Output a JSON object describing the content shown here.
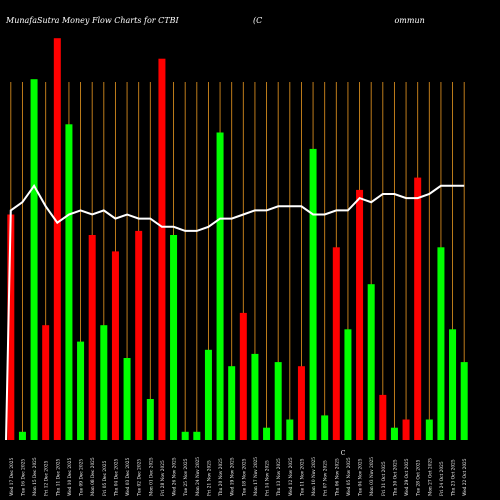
{
  "header": {
    "title": "MunafaSutra  Money Flow  Charts for CTBI",
    "company": "(C                                                    ommun"
  },
  "colors": {
    "background": "#000000",
    "grid": "#d2891e",
    "up": "#00ff00",
    "down": "#ff0000",
    "line": "#ffffff",
    "text": "#ffffff"
  },
  "chart_data": {
    "type": "bar",
    "bar_colors": [
      "red",
      "green",
      "green",
      "red",
      "red",
      "green",
      "green",
      "red",
      "green",
      "red",
      "green",
      "red",
      "green",
      "red",
      "green",
      "green",
      "green",
      "green",
      "green",
      "green",
      "red",
      "green",
      "green",
      "green",
      "green",
      "red",
      "green",
      "green",
      "red",
      "green",
      "red",
      "green",
      "red",
      "green",
      "red",
      "red",
      "green",
      "green",
      "green",
      "green"
    ],
    "bar_values": [
      55,
      2,
      88,
      28,
      98,
      77,
      24,
      50,
      28,
      46,
      20,
      51,
      10,
      93,
      50,
      2,
      2,
      22,
      75,
      18,
      31,
      21,
      3,
      19,
      5,
      18,
      71,
      6,
      47,
      27,
      61,
      38,
      11,
      3,
      5,
      64,
      5,
      47,
      27,
      19
    ],
    "line_values": [
      56,
      58,
      62,
      57,
      53,
      55,
      56,
      55,
      56,
      54,
      55,
      54,
      54,
      52,
      52,
      51,
      51,
      52,
      54,
      54,
      55,
      56,
      56,
      57,
      57,
      57,
      55,
      55,
      56,
      56,
      59,
      58,
      60,
      60,
      59,
      59,
      60,
      62,
      62,
      62
    ],
    "x_labels": [
      "Wed 17 Dec 2025",
      "Tue 16 Dec 2025",
      "Mon 15 Dec 2025",
      "Fri 12 Dec 2025",
      "Thu 11 Dec 2025",
      "Wed 10 Dec 2025",
      "Tue 09 Dec 2025",
      "Mon 08 Dec 2025",
      "Fri 05 Dec 2025",
      "Thu 04 Dec 2025",
      "Wed 03 Dec 2025",
      "Tue 02 Dec 2025",
      "Mon 01 Dec 2025",
      "Fri 28 Nov 2025",
      "Wed 26 Nov 2025",
      "Tue 25 Nov 2025",
      "Mon 24 Nov 2025",
      "Fri 21 Nov 2025",
      "Thu 20 Nov 2025",
      "Wed 19 Nov 2025",
      "Tue 18 Nov 2025",
      "Mon 17 Nov 2025",
      "Fri 14 Nov 2025",
      "Thu 13 Nov 2025",
      "Wed 12 Nov 2025",
      "Tue 11 Nov 2025",
      "Mon 10 Nov 2025",
      "Fri 07 Nov 2025",
      "Thu 06 Nov 2025",
      "Wed 05 Nov 2025",
      "Tue 04 Nov 2025",
      "Mon 03 Nov 2025",
      "Fri 31 Oct 2025",
      "Thu 30 Oct 2025",
      "Wed 29 Oct 2025",
      "Tue 28 Oct 2025",
      "Mon 27 Oct 2025",
      "Fri 24 Oct 2025",
      "Thu 23 Oct 2025",
      "Wed 22 Oct 2025"
    ],
    "y_range": [
      0,
      100
    ],
    "center_marker": "C"
  }
}
